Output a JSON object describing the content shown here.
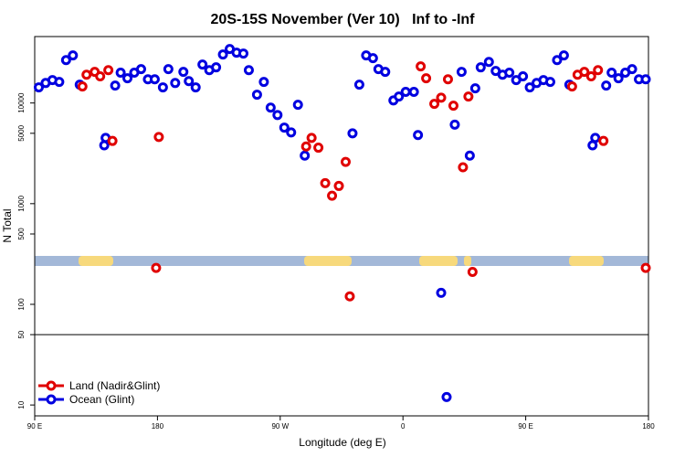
{
  "chart_data": {
    "type": "scatter",
    "title": "20S-15S November (Ver 10)   Inf to -Inf",
    "x_label": "Longitude (deg E)",
    "y_label": "N Total",
    "log_y": true,
    "xlim": [
      90,
      540
    ],
    "ylim": [
      7.8,
      45700
    ],
    "xticks": [
      {
        "value": 90,
        "label": "90 E"
      },
      180,
      {
        "value": 270,
        "label": "90 W"
      },
      {
        "value": 360,
        "label": "0"
      },
      {
        "value": 450,
        "label": "90 E"
      },
      {
        "value": 540,
        "label": "180"
      }
    ],
    "yticks": [
      10,
      50,
      100,
      500,
      1000,
      5000,
      10000
    ],
    "reference_line": 50,
    "legend_position": "bottom-left",
    "series": [
      {
        "name": "Land (Nadir&Glint)",
        "color": "#e00000",
        "x": [
          125,
          128,
          134,
          138,
          144,
          147,
          179,
          181,
          289,
          293,
          298,
          303,
          308,
          313,
          318,
          321,
          373,
          377,
          383,
          388,
          393,
          397,
          404,
          408,
          411,
          484,
          488,
          493,
          498,
          503,
          507,
          538
        ],
        "values": [
          14600,
          19100,
          20400,
          18400,
          21200,
          4200,
          230,
          4600,
          3700,
          4500,
          3600,
          1600,
          1200,
          1500,
          2600,
          120,
          23100,
          17600,
          9800,
          11300,
          17200,
          9400,
          2300,
          11600,
          210,
          14600,
          19100,
          20400,
          18400,
          21200,
          4200,
          230
        ]
      },
      {
        "name": "Ocean (Glint)",
        "color": "#0000e0",
        "x": [
          93,
          98,
          103,
          108,
          113,
          118,
          123,
          141,
          142,
          149,
          153,
          158,
          163,
          168,
          173,
          178,
          184,
          188,
          193,
          199,
          203,
          208,
          213,
          218,
          223,
          228,
          233,
          238,
          243,
          247,
          253,
          258,
          263,
          268,
          273,
          278,
          283,
          288,
          323,
          328,
          333,
          338,
          342,
          347,
          353,
          357,
          362,
          368,
          371,
          388,
          392,
          398,
          403,
          409,
          413,
          417,
          423,
          428,
          433,
          438,
          443,
          448,
          453,
          458,
          463,
          468,
          473,
          478,
          482,
          499,
          501,
          509,
          513,
          518,
          523,
          528,
          533,
          538
        ],
        "values": [
          14300,
          15800,
          16900,
          16200,
          26700,
          29700,
          15200,
          3800,
          4500,
          14900,
          20000,
          17600,
          20000,
          21700,
          17200,
          17200,
          14300,
          21700,
          15800,
          20400,
          16500,
          14300,
          24100,
          21200,
          22600,
          30300,
          34400,
          31600,
          31000,
          21200,
          12100,
          16200,
          9000,
          7600,
          5700,
          5100,
          9600,
          3000,
          5000,
          15200,
          29700,
          27900,
          21700,
          20400,
          10600,
          11600,
          12900,
          12900,
          4800,
          130,
          12,
          6100,
          20400,
          3000,
          14000,
          22600,
          25600,
          20800,
          19100,
          20000,
          16900,
          18400,
          14300,
          15800,
          16900,
          16200,
          26700,
          29700,
          15200,
          3800,
          4500,
          14900,
          20000,
          17600,
          20000,
          21700,
          17200,
          17200
        ]
      }
    ]
  }
}
